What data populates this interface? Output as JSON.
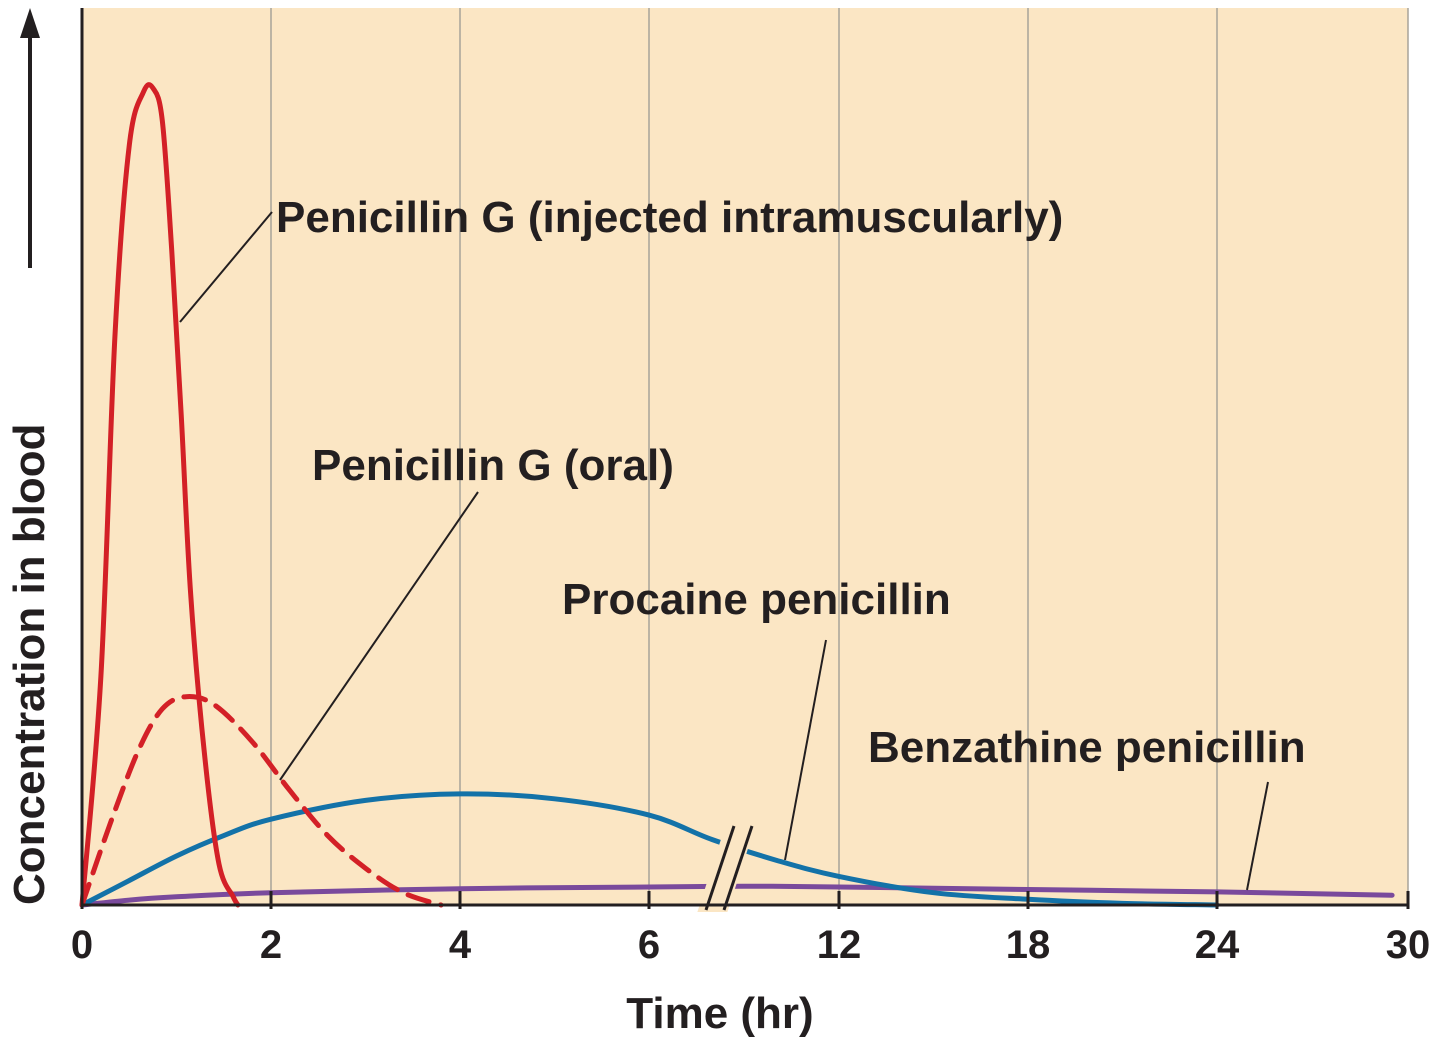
{
  "chart_data": {
    "type": "line",
    "title": "",
    "xlabel": "Time (hr)",
    "ylabel": "Concentration in blood",
    "x_ticks": [
      "0",
      "2",
      "4",
      "6",
      "12",
      "18",
      "24",
      "30"
    ],
    "x_break": "between 6 and 12 hr",
    "grid": "vertical",
    "colors": {
      "background": "#fbe6c4",
      "grid": "#a8a39a",
      "axis": "#231f20",
      "penicillin_g_im": "#d32027",
      "penicillin_g_oral": "#d32027",
      "procaine": "#1372a8",
      "benzathine": "#7a4a9c"
    },
    "series": [
      {
        "key": "penicillin_g_im",
        "label": "Penicillin G (injected intramuscularly)",
        "style": "solid",
        "x": [
          0,
          0.2,
          0.35,
          0.5,
          0.65,
          0.75,
          0.85,
          0.95,
          1.05,
          1.15,
          1.3,
          1.45,
          1.6,
          1.65
        ],
        "y": [
          0,
          0.28,
          0.7,
          0.93,
          0.995,
          1.0,
          0.96,
          0.8,
          0.6,
          0.38,
          0.18,
          0.05,
          0.01,
          0
        ]
      },
      {
        "key": "penicillin_g_oral",
        "label": "Penicillin G (oral)",
        "style": "dashed",
        "x": [
          0,
          0.3,
          0.6,
          0.85,
          1.1,
          1.4,
          1.8,
          2.2,
          2.6,
          3.0,
          3.4,
          3.8
        ],
        "y": [
          0,
          0.1,
          0.19,
          0.24,
          0.255,
          0.245,
          0.2,
          0.14,
          0.085,
          0.045,
          0.015,
          0
        ]
      },
      {
        "key": "procaine",
        "label": "Procaine penicillin",
        "style": "solid",
        "x": [
          0,
          0.5,
          1,
          1.5,
          2,
          3,
          4,
          5,
          6,
          8,
          10,
          12,
          15,
          18,
          21,
          24
        ],
        "y": [
          0,
          0.03,
          0.06,
          0.085,
          0.105,
          0.128,
          0.136,
          0.13,
          0.11,
          0.08,
          0.055,
          0.035,
          0.015,
          0.007,
          0.002,
          0
        ]
      },
      {
        "key": "benzathine",
        "label": "Benzathine penicillin",
        "style": "solid",
        "x": [
          0,
          0.5,
          1,
          2,
          4,
          6,
          9,
          12,
          18,
          24,
          29.5
        ],
        "y": [
          0,
          0.006,
          0.01,
          0.015,
          0.02,
          0.022,
          0.023,
          0.022,
          0.019,
          0.016,
          0.012
        ]
      }
    ]
  }
}
